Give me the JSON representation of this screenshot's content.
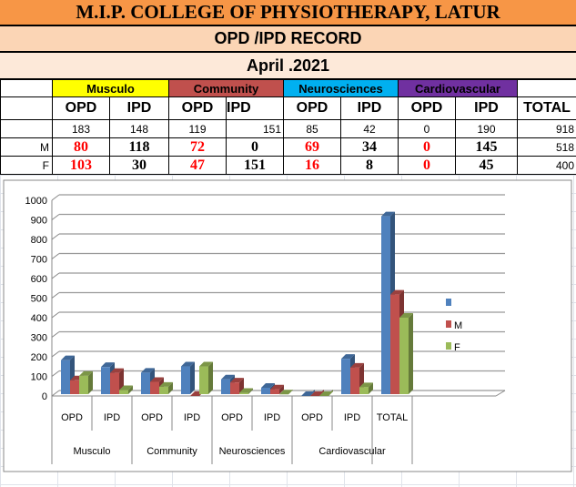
{
  "header": {
    "title": "M.I.P. COLLEGE OF PHYSIOTHERAPY, LATUR",
    "subtitle": "OPD /IPD RECORD",
    "period": "April .2021"
  },
  "table": {
    "groups": [
      {
        "label": "Musculo",
        "color": "#ffff00"
      },
      {
        "label": "Community",
        "color": "#c0504d"
      },
      {
        "label": "Neurosciences",
        "color": "#00b0f0"
      },
      {
        "label": "Cardiovascular",
        "color": "#7030a0"
      }
    ],
    "subheaders": [
      "OPD",
      "IPD",
      "OPD",
      "IPD",
      "OPD",
      "IPD",
      "OPD",
      "IPD",
      "TOTAL"
    ],
    "rows": [
      {
        "label": "",
        "values": [
          "183",
          "148",
          "119",
          "151",
          "85",
          "42",
          "0",
          "190",
          "918"
        ]
      },
      {
        "label": "M",
        "values": [
          "80",
          "118",
          "72",
          "0",
          "69",
          "34",
          "0",
          "145",
          "518"
        ]
      },
      {
        "label": "F",
        "values": [
          "103",
          "30",
          "47",
          "151",
          "16",
          "8",
          "0",
          "45",
          "400"
        ]
      }
    ]
  },
  "chart_data": {
    "type": "bar",
    "categories": [
      "OPD",
      "IPD",
      "OPD",
      "IPD",
      "OPD",
      "IPD",
      "OPD",
      "IPD",
      "TOTAL"
    ],
    "group_labels": [
      "Musculo",
      "Community",
      "Neurosciences",
      "Cardiovascular"
    ],
    "series": [
      {
        "name": "",
        "color": "#4f81bd",
        "values": [
          183,
          148,
          119,
          151,
          85,
          42,
          0,
          190,
          918
        ]
      },
      {
        "name": "M",
        "color": "#c0504d",
        "values": [
          80,
          118,
          72,
          0,
          69,
          34,
          0,
          145,
          518
        ]
      },
      {
        "name": "F",
        "color": "#9bbb59",
        "values": [
          103,
          30,
          47,
          151,
          16,
          8,
          0,
          45,
          400
        ]
      }
    ],
    "yticks": [
      "0",
      "100",
      "200",
      "300",
      "400",
      "500",
      "600",
      "700",
      "800",
      "900",
      "1000"
    ],
    "ylim": [
      0,
      1000
    ],
    "grid": true,
    "legend": "right"
  }
}
